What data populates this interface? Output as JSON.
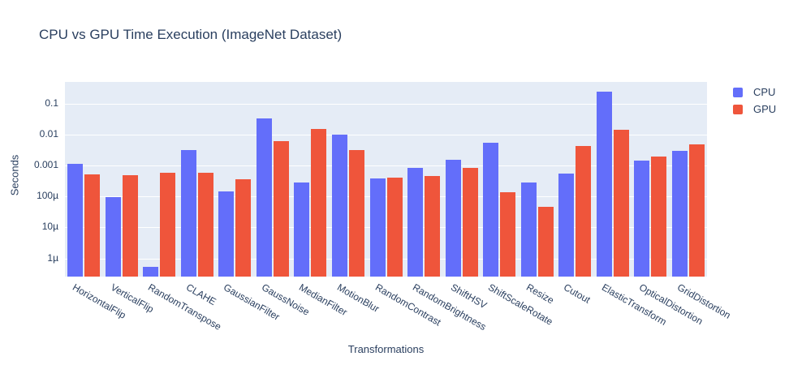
{
  "title": "CPU vs GPU Time Execution (ImageNet Dataset)",
  "colors": {
    "cpu": "#636EFA",
    "gpu": "#EF553B",
    "plot_background": "#E5ECF6",
    "gridline": "#FFFFFF",
    "text": "#2a3f5f"
  },
  "legend": {
    "items": [
      {
        "label": "CPU",
        "color_key": "cpu"
      },
      {
        "label": "GPU",
        "color_key": "gpu"
      }
    ]
  },
  "chart_data": {
    "type": "bar",
    "title": "CPU vs GPU Time Execution (ImageNet Dataset)",
    "xlabel": "Transformations",
    "ylabel": "Seconds",
    "yscale": "log",
    "ylim": [
      2.6e-07,
      0.5
    ],
    "grid": true,
    "legend_position": "top-right",
    "yticks": [
      {
        "value": 0.1,
        "label": "0.1"
      },
      {
        "value": 0.01,
        "label": "0.01"
      },
      {
        "value": 0.001,
        "label": "0.001"
      },
      {
        "value": 0.0001,
        "label": "100µ"
      },
      {
        "value": 1e-05,
        "label": "10µ"
      },
      {
        "value": 1e-06,
        "label": "1µ"
      }
    ],
    "categories": [
      "HorizontalFlip",
      "VerticalFlip",
      "RandomTranspose",
      "CLAHE",
      "GaussianFilter",
      "GaussNoise",
      "MedianFilter",
      "MotionBlur",
      "RandomContrast",
      "RandomBrightness",
      "ShiftHSV",
      "ShiftScaleRotate",
      "Resize",
      "Cutout",
      "ElasticTransform",
      "OpticalDistortion",
      "GridDistortion"
    ],
    "series": [
      {
        "name": "CPU",
        "color": "#636EFA",
        "values": [
          0.0011,
          9.7e-05,
          5.5e-07,
          0.0031,
          0.000145,
          0.033,
          0.00028,
          0.0099,
          0.00038,
          0.00085,
          0.0015,
          0.0053,
          0.00029,
          0.00055,
          0.24,
          0.00142,
          0.003
        ]
      },
      {
        "name": "GPU",
        "color": "#EF553B",
        "values": [
          0.00052,
          0.0005,
          0.0006,
          0.00058,
          0.00035,
          0.0062,
          0.0155,
          0.0031,
          0.0004,
          0.00046,
          0.00086,
          0.00014,
          4.7e-05,
          0.0043,
          0.014,
          0.002,
          0.0049
        ]
      }
    ]
  }
}
